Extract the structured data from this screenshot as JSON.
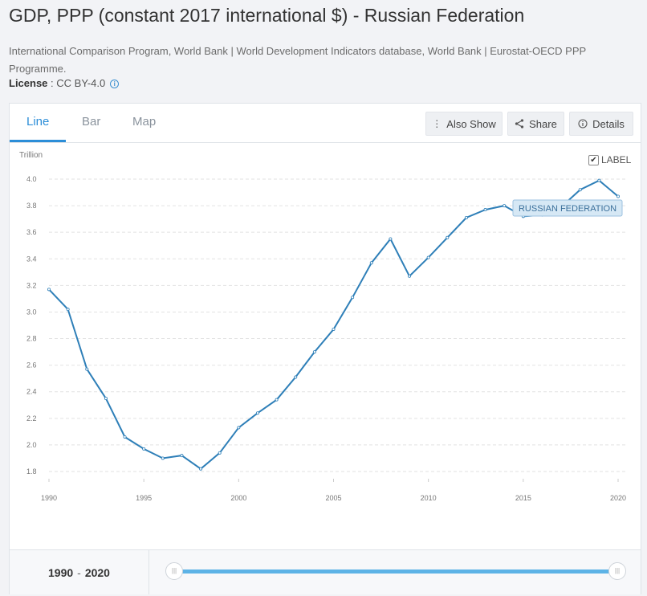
{
  "header": {
    "title": "GDP, PPP (constant 2017 international $) - Russian Federation",
    "source": "International Comparison Program, World Bank | World Development Indicators database, World Bank | Eurostat-OECD PPP Programme.",
    "license_label": "License",
    "license_value": " : CC BY-4.0"
  },
  "tabs": [
    {
      "label": "Line",
      "active": true
    },
    {
      "label": "Bar",
      "active": false
    },
    {
      "label": "Map",
      "active": false
    }
  ],
  "toolbar": {
    "also_show": "Also Show",
    "share": "Share",
    "details": "Details"
  },
  "label_toggle": {
    "text": "LABEL",
    "checked": true
  },
  "footer": {
    "range_start": "1990",
    "range_sep": "-",
    "range_end": "2020"
  },
  "chart_data": {
    "type": "line",
    "ylabel": "Trillion",
    "ylim": [
      1.7,
      4.1
    ],
    "yticks": [
      "1.8",
      "2.0",
      "2.2",
      "2.4",
      "2.6",
      "2.8",
      "3.0",
      "3.2",
      "3.4",
      "3.6",
      "3.8",
      "4.0"
    ],
    "xticks": [
      "1990",
      "1995",
      "2000",
      "2005",
      "2010",
      "2015",
      "2020"
    ],
    "grid": true,
    "line_color": "#2e7fb8",
    "series": [
      {
        "name": "RUSSIAN FEDERATION",
        "x": [
          1990,
          1991,
          1992,
          1993,
          1994,
          1995,
          1996,
          1997,
          1998,
          1999,
          2000,
          2001,
          2002,
          2003,
          2004,
          2005,
          2006,
          2007,
          2008,
          2009,
          2010,
          2011,
          2012,
          2013,
          2014,
          2015,
          2016,
          2017,
          2018,
          2019,
          2020
        ],
        "values": [
          3.17,
          3.02,
          2.57,
          2.35,
          2.06,
          1.97,
          1.9,
          1.92,
          1.82,
          1.94,
          2.13,
          2.24,
          2.34,
          2.51,
          2.7,
          2.87,
          3.11,
          3.37,
          3.55,
          3.27,
          3.41,
          3.56,
          3.71,
          3.77,
          3.8,
          3.72,
          3.73,
          3.79,
          3.92,
          3.99,
          3.87
        ]
      }
    ]
  }
}
